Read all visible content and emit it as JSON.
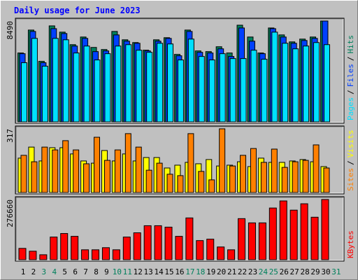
{
  "title": "Daily usage for June 2023",
  "chart_data": [
    {
      "type": "bar",
      "ylim": [
        0,
        8490
      ],
      "yticks": [
        8490
      ],
      "legend_separator": "/",
      "series": [
        {
          "name": "Hits",
          "color": "#00805c",
          "values": [
            5797,
            7729,
            5094,
            8080,
            7553,
            6499,
            7143,
            6265,
            6089,
            7612,
            6909,
            6675,
            6031,
            6909,
            7085,
            5679,
            7729,
            5972,
            5914,
            6323,
            5797,
            8138,
            7143,
            5797,
            7904,
            7319,
            6733,
            6967,
            7143,
            8490,
            0
          ]
        },
        {
          "name": "Files",
          "color": "#0040ff",
          "values": [
            5738,
            7612,
            4977,
            7846,
            7436,
            6382,
            7026,
            5914,
            5972,
            7319,
            6792,
            6616,
            5972,
            6792,
            7026,
            5562,
            7612,
            5855,
            5797,
            6148,
            5504,
            7904,
            6792,
            5738,
            7846,
            7143,
            6616,
            6850,
            7026,
            8490,
            0
          ]
        },
        {
          "name": "Pages",
          "color": "#00e0ff",
          "values": [
            4977,
            7026,
            4684,
            7026,
            6909,
            5797,
            6382,
            5211,
            5738,
            6382,
            6499,
            6031,
            5855,
            6616,
            6558,
            5211,
            6967,
            5504,
            5211,
            5738,
            5328,
            5328,
            6031,
            5270,
            7553,
            6616,
            6148,
            6382,
            6675,
            6499,
            0
          ]
        }
      ]
    },
    {
      "type": "bar",
      "ylim": [
        0,
        317
      ],
      "yticks": [
        317
      ],
      "legend_separator": "/",
      "series": [
        {
          "name": "Visits",
          "color": "#ffff00",
          "values": [
            171,
            226,
            157,
            223,
            223,
            192,
            157,
            146,
            209,
            157,
            192,
            157,
            174,
            174,
            122,
            136,
            150,
            143,
            164,
            132,
            136,
            153,
            129,
            171,
            150,
            150,
            157,
            164,
            153,
            129,
            0
          ]
        },
        {
          "name": "Sites",
          "color": "#ff8000",
          "values": [
            185,
            153,
            226,
            212,
            258,
            212,
            143,
            275,
            160,
            212,
            293,
            226,
            111,
            146,
            91,
            84,
            293,
            105,
            63,
            317,
            132,
            185,
            219,
            150,
            216,
            125,
            153,
            160,
            237,
            122,
            0
          ]
        }
      ]
    },
    {
      "type": "bar",
      "ylim": [
        0,
        276660
      ],
      "yticks": [
        276660
      ],
      "categories": [
        "1",
        "2",
        "3",
        "4",
        "5",
        "6",
        "7",
        "8",
        "9",
        "10",
        "11",
        "12",
        "13",
        "14",
        "15",
        "16",
        "17",
        "18",
        "19",
        "20",
        "21",
        "22",
        "23",
        "24",
        "25",
        "26",
        "27",
        "28",
        "29",
        "30",
        "31"
      ],
      "category_colors": [
        "#000000",
        "#000000",
        "#00805c",
        "#00805c",
        "#000000",
        "#000000",
        "#000000",
        "#000000",
        "#000000",
        "#00805c",
        "#00805c",
        "#000000",
        "#000000",
        "#000000",
        "#000000",
        "#000000",
        "#00805c",
        "#00805c",
        "#000000",
        "#000000",
        "#000000",
        "#000000",
        "#000000",
        "#00805c",
        "#00805c",
        "#000000",
        "#000000",
        "#000000",
        "#000000",
        "#000000",
        "#00805c"
      ],
      "series": [
        {
          "name": "KBytes",
          "color": "#ff0000",
          "values": [
            52077,
            39058,
            22784,
            104155,
            120429,
            107410,
            45567,
            45567,
            55332,
            45567,
            104155,
            123683,
            156232,
            156232,
            149722,
            107410,
            192035,
            87880,
            94390,
            58587,
            45567,
            188780,
            169251,
            169251,
            237603,
            270151,
            227838,
            257131,
            195289,
            276660,
            0
          ]
        }
      ]
    }
  ]
}
